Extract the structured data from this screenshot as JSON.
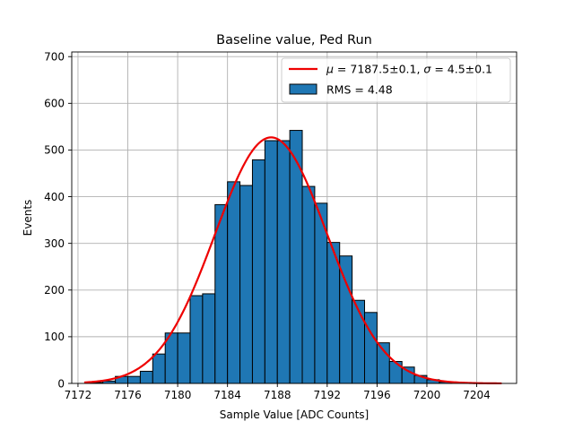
{
  "chart_data": {
    "type": "bar",
    "title": "Baseline value, Ped Run",
    "xlabel": "Sample Value [ADC Counts]",
    "ylabel": "Events",
    "xlim": [
      7171.5,
      7207.2
    ],
    "ylim": [
      0,
      710
    ],
    "xticks": [
      7172,
      7176,
      7180,
      7184,
      7188,
      7192,
      7196,
      7200,
      7204
    ],
    "yticks": [
      0,
      100,
      200,
      300,
      400,
      500,
      600,
      700
    ],
    "grid": true,
    "legend": {
      "placement": "top-right"
    },
    "histogram": {
      "bin_width": 1,
      "bin_starts": [
        7173,
        7174,
        7175,
        7176,
        7177,
        7178,
        7179,
        7180,
        7181,
        7182,
        7183,
        7184,
        7185,
        7186,
        7187,
        7188,
        7189,
        7190,
        7191,
        7192,
        7193,
        7194,
        7195,
        7196,
        7197,
        7198,
        7199,
        7200,
        7201
      ],
      "counts": [
        2,
        5,
        15,
        15,
        26,
        63,
        108,
        108,
        188,
        192,
        383,
        432,
        424,
        479,
        520,
        520,
        542,
        422,
        386,
        302,
        273,
        178,
        152,
        87,
        47,
        35,
        17,
        8,
        3
      ],
      "color": "#1f77b4",
      "label": "RMS = 4.48"
    },
    "fit": {
      "type": "gaussian",
      "label": "$\\mu = 7187.5\\pm0.1$, $\\sigma = 4.5\\pm0.1$",
      "label_mu": "μ",
      "label_mu_value": " = 7187.5±0.1, ",
      "label_sigma": "σ",
      "label_sigma_value": " = 4.5±0.1",
      "mu": 7187.5,
      "sigma": 4.5,
      "amplitude": 527,
      "x_range": [
        7172.5,
        7206
      ],
      "color": "#ee0000"
    }
  }
}
